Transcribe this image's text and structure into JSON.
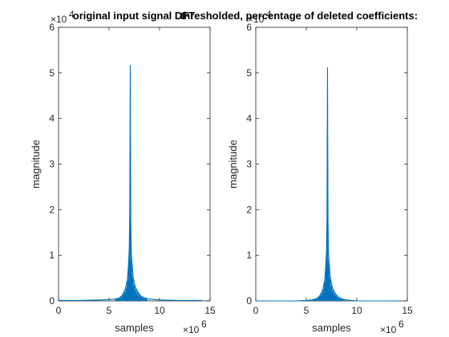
{
  "chart_data": [
    {
      "type": "line",
      "title": "original input signal DFT",
      "xlabel": "samples",
      "ylabel": "magnitude",
      "xlim": [
        0,
        15
      ],
      "ylim": [
        0,
        6
      ],
      "x_ticks": [
        "0",
        "5",
        "10",
        "15"
      ],
      "y_ticks": [
        "0",
        "1",
        "2",
        "3",
        "4",
        "5",
        "6"
      ],
      "x_exponent": "×10",
      "x_exponent_power": "6",
      "y_exponent": "×10",
      "y_exponent_power": "4",
      "grid": false,
      "series": [
        {
          "color": "#0072BD",
          "x": [
            0,
            2,
            4,
            5,
            5.5,
            6,
            6.3,
            6.6,
            6.8,
            6.9,
            7.0,
            7.05,
            7.1,
            7.15,
            7.2,
            7.3,
            7.4,
            7.6,
            7.9,
            8.2,
            8.6,
            9,
            10,
            12,
            14.2
          ],
          "y": [
            0.01,
            0.01,
            0.02,
            0.03,
            0.04,
            0.06,
            0.12,
            0.25,
            0.45,
            0.7,
            1.15,
            1.9,
            5.17,
            1.8,
            1.1,
            0.75,
            0.5,
            0.3,
            0.18,
            0.1,
            0.06,
            0.04,
            0.02,
            0.01,
            0.01
          ]
        }
      ]
    },
    {
      "type": "line",
      "title": "thresholded, percentage of deleted coefficients:",
      "xlabel": "samples",
      "ylabel": "magnitude",
      "xlim": [
        0,
        15
      ],
      "ylim": [
        0,
        6
      ],
      "x_ticks": [
        "0",
        "5",
        "10",
        "15"
      ],
      "y_ticks": [
        "0",
        "1",
        "2",
        "3",
        "4",
        "5",
        "6"
      ],
      "x_exponent": "×10",
      "x_exponent_power": "6",
      "y_exponent": "×10",
      "y_exponent_power": "4",
      "grid": false,
      "series": [
        {
          "color": "#0072BD",
          "x": [
            0,
            2,
            4,
            5,
            5.5,
            6,
            6.3,
            6.6,
            6.8,
            6.9,
            7.0,
            7.05,
            7.1,
            7.15,
            7.2,
            7.3,
            7.4,
            7.6,
            7.9,
            8.2,
            8.6,
            9,
            10,
            12,
            14.2
          ],
          "y": [
            0.0,
            0.0,
            0.0,
            0.01,
            0.02,
            0.05,
            0.1,
            0.22,
            0.42,
            0.68,
            1.1,
            1.85,
            5.12,
            1.75,
            1.05,
            0.72,
            0.48,
            0.28,
            0.15,
            0.08,
            0.04,
            0.02,
            0.0,
            0.0,
            0.0
          ]
        }
      ]
    }
  ]
}
